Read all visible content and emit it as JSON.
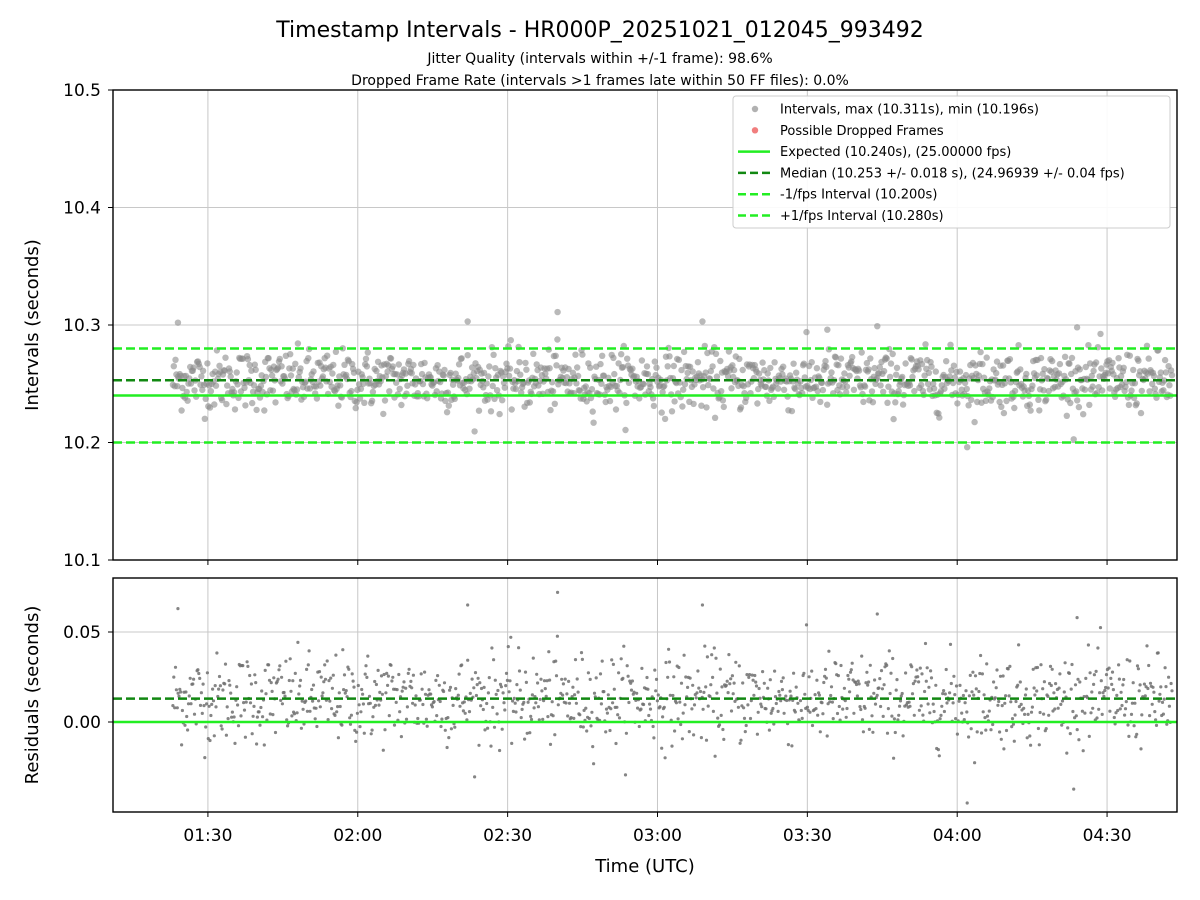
{
  "chart_data": [
    {
      "type": "scatter",
      "title": "Timestamp Intervals - HR000P_20251021_012045_993492",
      "subtitle_1": "Jitter Quality (intervals within +/-1 frame): 98.6%",
      "subtitle_2": "Dropped Frame Rate (intervals >1 frames late within 50 FF files): 0.0%",
      "ylabel": "Intervals (seconds)",
      "ylim": [
        10.1,
        10.5
      ],
      "yticks": [
        "10.1",
        "10.2",
        "10.3",
        "10.4",
        "10.5"
      ],
      "grid": true,
      "legend_position": "top-right",
      "legend": [
        {
          "label": "Intervals, max (10.311s), min (10.196s)",
          "kind": "dot",
          "color": "#a9a9a9"
        },
        {
          "label": "Possible Dropped Frames",
          "kind": "dot",
          "color": "#f07070"
        },
        {
          "label": "Expected (10.240s), (25.00000 fps)",
          "kind": "solid",
          "color": "#22ee22"
        },
        {
          "label": "Median (10.253 +/- 0.018 s), (24.96939 +/- 0.04 fps)",
          "kind": "dashed",
          "color": "#118811"
        },
        {
          "label": "-1/fps Interval (10.200s)",
          "kind": "dashed",
          "color": "#22ee22"
        },
        {
          "label": "+1/fps Interval (10.280s)",
          "kind": "dashed",
          "color": "#22ee22"
        }
      ],
      "reference_lines": {
        "expected": 10.24,
        "median": 10.253,
        "minus_1fps": 10.2,
        "plus_1fps": 10.28
      },
      "series_summary": {
        "max": 10.311,
        "min": 10.196,
        "median": 10.253,
        "std": 0.018,
        "time_start": "01:23",
        "time_end": "04:43"
      },
      "notable_points": [
        {
          "t": "01:24",
          "y": 10.302
        },
        {
          "t": "02:22",
          "y": 10.303
        },
        {
          "t": "02:40",
          "y": 10.311
        },
        {
          "t": "03:09",
          "y": 10.303
        },
        {
          "t": "03:34",
          "y": 10.296
        },
        {
          "t": "03:44",
          "y": 10.299
        },
        {
          "t": "04:24",
          "y": 10.298
        },
        {
          "t": "04:02",
          "y": 10.196
        }
      ]
    },
    {
      "type": "scatter",
      "ylabel": "Residuals (seconds)",
      "xlabel": "Time (UTC)",
      "ylim": [
        -0.05,
        0.08
      ],
      "yticks": [
        "0.00",
        "0.05"
      ],
      "xticks": [
        "01:30",
        "02:00",
        "02:30",
        "03:00",
        "03:30",
        "04:00",
        "04:30"
      ],
      "xlim": [
        "01:11",
        "04:44"
      ],
      "grid": true,
      "reference_lines": {
        "zero": 0.0,
        "median": 0.013
      },
      "notable_points": [
        {
          "t": "01:24",
          "y": 0.063
        },
        {
          "t": "02:22",
          "y": 0.065
        },
        {
          "t": "02:40",
          "y": 0.072
        },
        {
          "t": "03:09",
          "y": 0.065
        },
        {
          "t": "03:44",
          "y": 0.06
        },
        {
          "t": "04:24",
          "y": 0.058
        },
        {
          "t": "04:02",
          "y": -0.045
        }
      ]
    }
  ]
}
